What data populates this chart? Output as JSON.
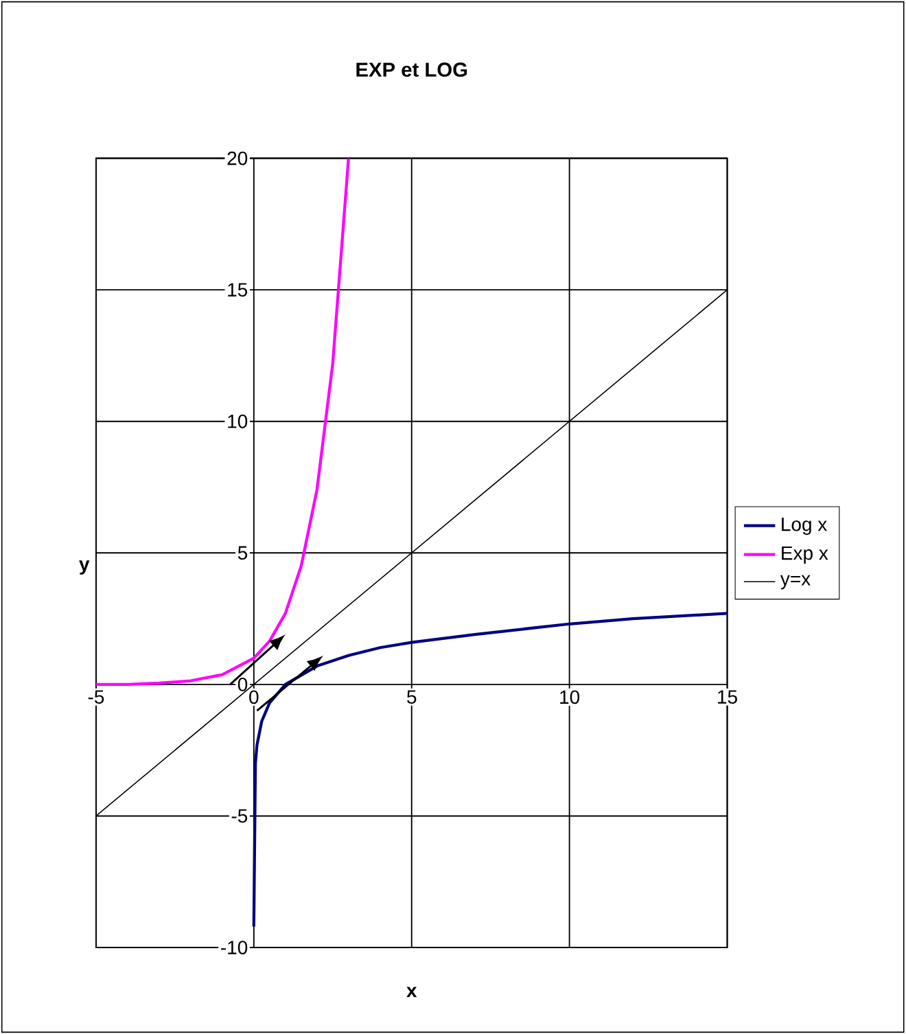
{
  "chart_data": {
    "type": "line",
    "title": "EXP et LOG",
    "xlabel": "x",
    "ylabel": "y",
    "xlim": [
      -5,
      15
    ],
    "ylim": [
      -10,
      20
    ],
    "xticks": [
      -5,
      0,
      5,
      10,
      15
    ],
    "yticks": [
      -10,
      -5,
      0,
      5,
      10,
      15,
      20
    ],
    "grid": true,
    "legend": "right",
    "series": [
      {
        "name": "Log x",
        "color": "#000080",
        "x": [
          0,
          0.05,
          0.1,
          0.25,
          0.5,
          1,
          2,
          3,
          4,
          5,
          7,
          10,
          12,
          15
        ],
        "values": [
          -9.2,
          -3,
          -2.3,
          -1.4,
          -0.7,
          0,
          0.7,
          1.1,
          1.4,
          1.6,
          1.9,
          2.3,
          2.5,
          2.7
        ]
      },
      {
        "name": "Exp x",
        "color": "#ff00ff",
        "x": [
          -5,
          -4,
          -3,
          -2,
          -1,
          0,
          0.5,
          1,
          1.5,
          2,
          2.5,
          3
        ],
        "values": [
          0,
          0,
          0.05,
          0.14,
          0.37,
          1,
          1.65,
          2.7,
          4.5,
          7.4,
          12.2,
          20
        ]
      },
      {
        "name": "y=x",
        "color": "#000000",
        "x": [
          -5,
          15
        ],
        "values": [
          -5,
          15
        ]
      }
    ]
  }
}
